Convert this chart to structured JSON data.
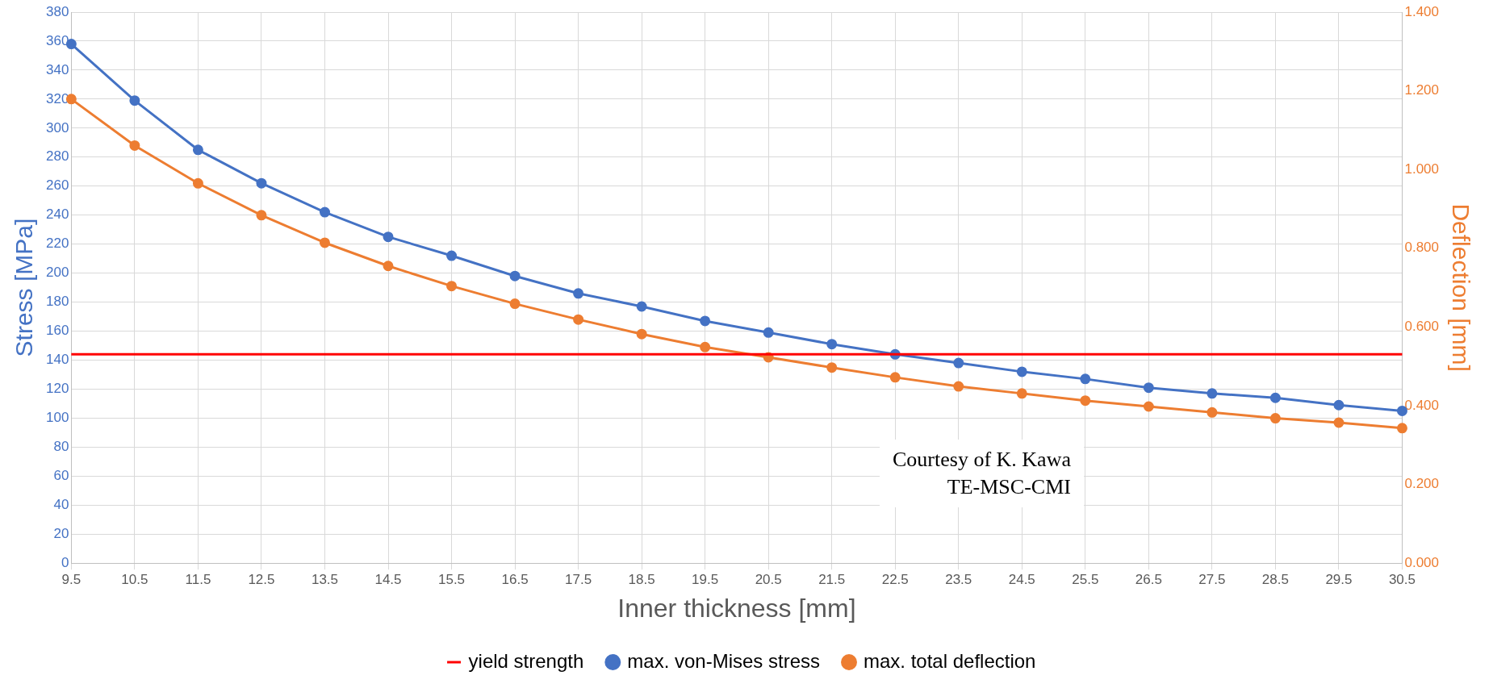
{
  "chart_data": {
    "type": "line",
    "xlabel": "Inner thickness [mm]",
    "ylabel": "Stress [MPa]",
    "y2label": "Deflection [mm]",
    "categories": [
      "9.5",
      "10.5",
      "11.5",
      "12.5",
      "13.5",
      "14.5",
      "15.5",
      "16.5",
      "17.5",
      "18.5",
      "19.5",
      "20.5",
      "21.5",
      "22.5",
      "23.5",
      "24.5",
      "25.5",
      "26.5",
      "27.5",
      "28.5",
      "29.5",
      "30.5"
    ],
    "series": [
      {
        "name": "max. von-Mises stress",
        "color": "#4472c4",
        "values": [
          358,
          319,
          285,
          262,
          242,
          225,
          212,
          198,
          186,
          177,
          167,
          159,
          151,
          144,
          138,
          132,
          127,
          121,
          117,
          114,
          109,
          105
        ]
      },
      {
        "name": "max. total deflection",
        "color": "#ed7d31",
        "axis": "y2",
        "values": [
          1.179,
          1.061,
          0.965,
          0.884,
          0.814,
          0.755,
          0.704,
          0.659,
          0.619,
          0.582,
          0.549,
          0.523,
          0.497,
          0.472,
          0.449,
          0.431,
          0.413,
          0.398,
          0.383,
          0.368,
          0.357,
          0.343
        ]
      }
    ],
    "ref_lines": [
      {
        "axis": "y",
        "value": 144,
        "label": "yield strength",
        "color": "#ff0000"
      }
    ],
    "ylim": [
      0,
      380
    ],
    "yticks": [
      0,
      20,
      40,
      60,
      80,
      100,
      120,
      140,
      160,
      180,
      200,
      220,
      240,
      260,
      280,
      300,
      320,
      340,
      360,
      380
    ],
    "y2lim": [
      0,
      1.4
    ],
    "y2ticks": [
      {
        "value": 0,
        "label": "0.000"
      },
      {
        "value": 0.2,
        "label": "0.200"
      },
      {
        "value": 0.4,
        "label": "0.400"
      },
      {
        "value": 0.6,
        "label": "0.600"
      },
      {
        "value": 0.8,
        "label": "0.800"
      },
      {
        "value": 1,
        "label": "1.000"
      },
      {
        "value": 1.2,
        "label": "1.200"
      },
      {
        "value": 1.4,
        "label": "1.400"
      }
    ],
    "annotations": [
      "Courtesy of K. Kawa",
      "TE-MSC-CMI"
    ],
    "grid": true,
    "legend": "bottom",
    "marker": "circle",
    "line_style": "solid"
  }
}
